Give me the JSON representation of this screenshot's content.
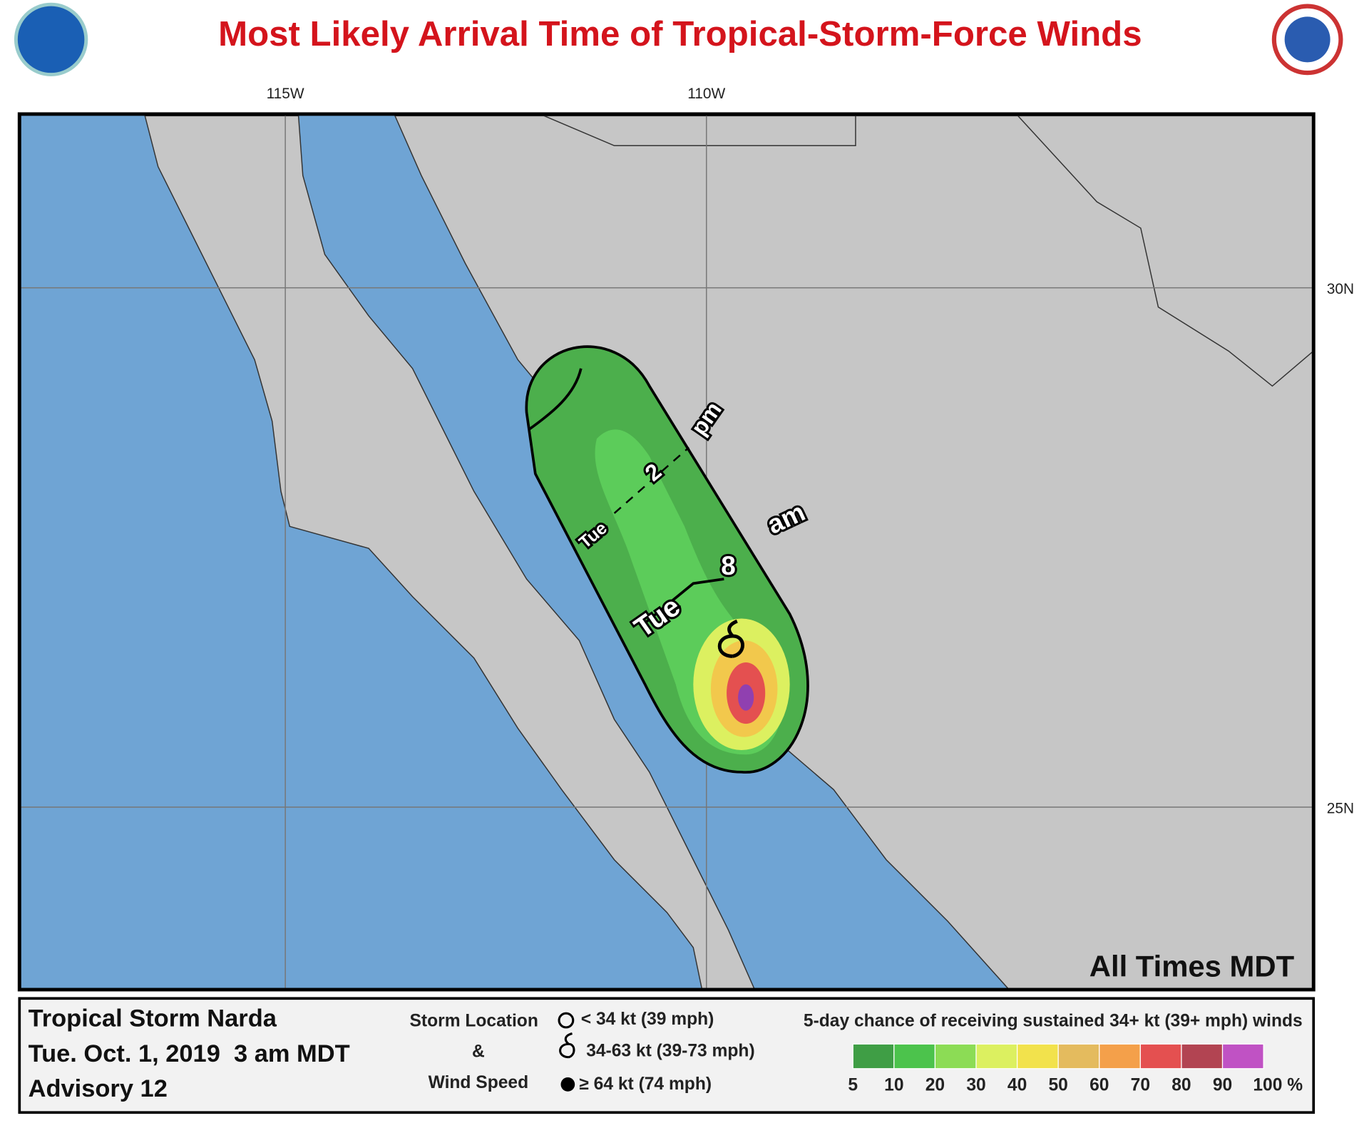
{
  "title": "Most Likely Arrival Time of Tropical-Storm-Force Winds",
  "map": {
    "longitude_labels": [
      "115W",
      "110W"
    ],
    "latitude_labels": [
      "30N",
      "25N"
    ],
    "arrival_labels": [
      "pm",
      "2",
      "Tue",
      "am",
      "8",
      "Tue"
    ],
    "note": "All Times MDT"
  },
  "info": {
    "storm": "Tropical Storm Narda",
    "time": "Tue. Oct. 1, 2019  3 am MDT",
    "advisory": "Advisory 12"
  },
  "storm_legend": {
    "title_lines": [
      "Storm Location",
      "&",
      "Wind Speed"
    ],
    "items": [
      "< 34 kt (39 mph)",
      "34-63 kt (39-73 mph)",
      "≥ 64 kt (74 mph)"
    ]
  },
  "probability_legend": {
    "title": "5-day chance of receiving sustained 34+ kt (39+ mph) winds",
    "labels": [
      "5",
      "10",
      "20",
      "30",
      "40",
      "50",
      "60",
      "70",
      "80",
      "90",
      "100 %"
    ],
    "colors": [
      "#3f9e45",
      "#4cc34c",
      "#8cdc55",
      "#dcf060",
      "#f2e24c",
      "#e4bb5e",
      "#f4a04a",
      "#e45050",
      "#b24452",
      "#c052c4"
    ]
  }
}
